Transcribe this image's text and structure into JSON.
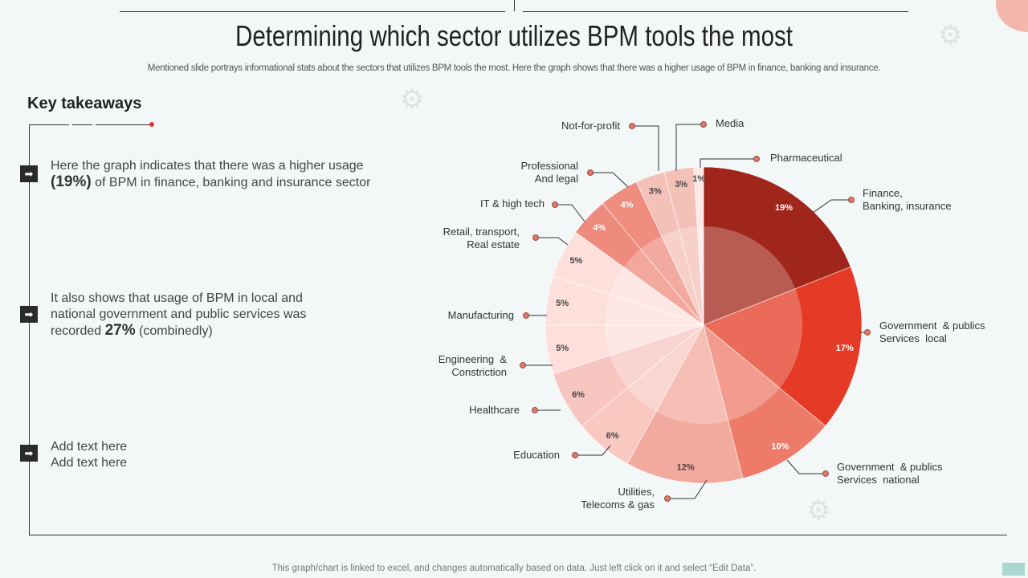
{
  "title": "Determining which sector utilizes BPM tools the most",
  "subtitle": "Mentioned slide portrays informational stats about the sectors that utilizes BPM  tools the most. Here the graph shows that there was a higher usage of BPM  in finance, banking and insurance.",
  "key_takeaways": {
    "heading": "Key takeaways",
    "points": [
      {
        "pre": "Here the graph indicates that there was a higher usage ",
        "bold": "(19%)",
        "post": " of BPM in finance, banking and insurance  sector"
      },
      {
        "pre": "It also shows that usage of BPM in local and national government  and public services was recorded ",
        "bold": "27%",
        "post": " (combinedly)"
      },
      {
        "pre": "Add text here\nAdd text here",
        "bold": "",
        "post": ""
      }
    ]
  },
  "footer": "This graph/chart is linked to excel,  and changes automatically based on data. Just left click on it and select “Edit Data”.",
  "chart_data": {
    "type": "pie",
    "title": "",
    "categories": [
      "Finance,\nBanking, insurance",
      "Government  & publics\nServices  local",
      "Government  & publics\nServices  national",
      "Utilities,\nTelecoms & gas",
      "Education",
      "Healthcare",
      "Engineering  &\nConstriction",
      "Manufacturing",
      "Retail, transport,\nReal estate",
      "IT & high tech",
      "Professional\nAnd legal",
      "Not-for-profit",
      "Media",
      "Pharmaceutical"
    ],
    "values": [
      19,
      17,
      10,
      12,
      6,
      6,
      5,
      5,
      5,
      4,
      4,
      3,
      3,
      1
    ],
    "data_labels": [
      "19%",
      "17%",
      "10%",
      "12%",
      "6%",
      "6%",
      "5%",
      "5%",
      "5%",
      "4%",
      "4%",
      "3%",
      "3%",
      "1%"
    ],
    "colors": [
      "#a0251a",
      "#e53a25",
      "#ee7b6a",
      "#f3aa9e",
      "#f8c8c1",
      "#f7c6c0",
      "#fde0dc",
      "#fde0dc",
      "#fde0dc",
      "#ef8b7e",
      "#ee8d80",
      "#f4c1b9",
      "#f4c1b9",
      "#fde9e6"
    ],
    "label_dot_color": "#e0786a"
  }
}
